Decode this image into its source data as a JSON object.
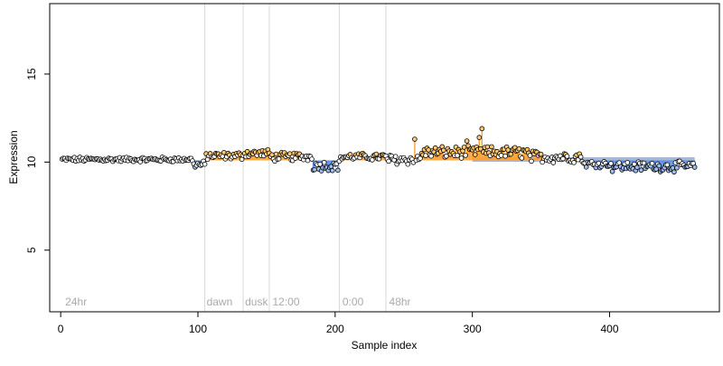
{
  "chart_data": {
    "type": "scatter",
    "title": "",
    "xlabel": "Sample index",
    "ylabel": "Expression",
    "xlim": [
      -8,
      480
    ],
    "ylim": [
      1.5,
      19
    ],
    "x_ticks": [
      0,
      100,
      200,
      300,
      400
    ],
    "y_ticks": [
      5,
      10,
      15
    ],
    "baseline": 10.1,
    "grid": false,
    "legend": "none",
    "colors": {
      "point_fill": "#ffffff",
      "point_stroke": "#000000",
      "above_segment": "#ffa030",
      "below_segment": "#5a8ee8",
      "above_fill": "#ffc870",
      "below_fill": "#9fbdf0",
      "vline": "#d8d8d8",
      "annotation_text": "#aaaaaa",
      "band": "#8fa8cc"
    },
    "band": {
      "x_start": 300,
      "x_end": 462,
      "y": 10.15
    },
    "annotations": [
      {
        "x": 2,
        "label": "24hr"
      },
      {
        "x": 105,
        "label": "dawn"
      },
      {
        "x": 133,
        "label": "dusk"
      },
      {
        "x": 153,
        "label": "12:00"
      },
      {
        "x": 204,
        "label": "0:00"
      },
      {
        "x": 238,
        "label": "48hr"
      }
    ],
    "vlines": [
      105,
      133,
      152,
      203,
      237
    ],
    "segments": [
      {
        "x_start": 1,
        "x_end": 96,
        "level": 10.15,
        "amp": 0.12
      },
      {
        "x_start": 97,
        "x_end": 105,
        "level": 9.85,
        "amp": 0.18
      },
      {
        "x_start": 106,
        "x_end": 132,
        "level": 10.35,
        "amp": 0.2
      },
      {
        "x_start": 133,
        "x_end": 152,
        "level": 10.5,
        "amp": 0.2
      },
      {
        "x_start": 153,
        "x_end": 183,
        "level": 10.3,
        "amp": 0.22
      },
      {
        "x_start": 184,
        "x_end": 203,
        "level": 9.8,
        "amp": 0.25
      },
      {
        "x_start": 204,
        "x_end": 237,
        "level": 10.3,
        "amp": 0.18
      },
      {
        "x_start": 238,
        "x_end": 262,
        "level": 10.15,
        "amp": 0.25
      },
      {
        "x_start": 263,
        "x_end": 300,
        "level": 10.55,
        "amp": 0.3
      },
      {
        "x_start": 301,
        "x_end": 340,
        "level": 10.55,
        "amp": 0.3
      },
      {
        "x_start": 341,
        "x_end": 380,
        "level": 10.3,
        "amp": 0.3
      },
      {
        "x_start": 381,
        "x_end": 400,
        "level": 9.9,
        "amp": 0.18
      },
      {
        "x_start": 401,
        "x_end": 462,
        "level": 9.75,
        "amp": 0.25
      }
    ],
    "highlights": [
      {
        "x": 258,
        "y": 11.3
      },
      {
        "x": 307,
        "y": 11.9
      },
      {
        "x": 305,
        "y": 11.4
      },
      {
        "x": 296,
        "y": 11.2
      }
    ]
  }
}
